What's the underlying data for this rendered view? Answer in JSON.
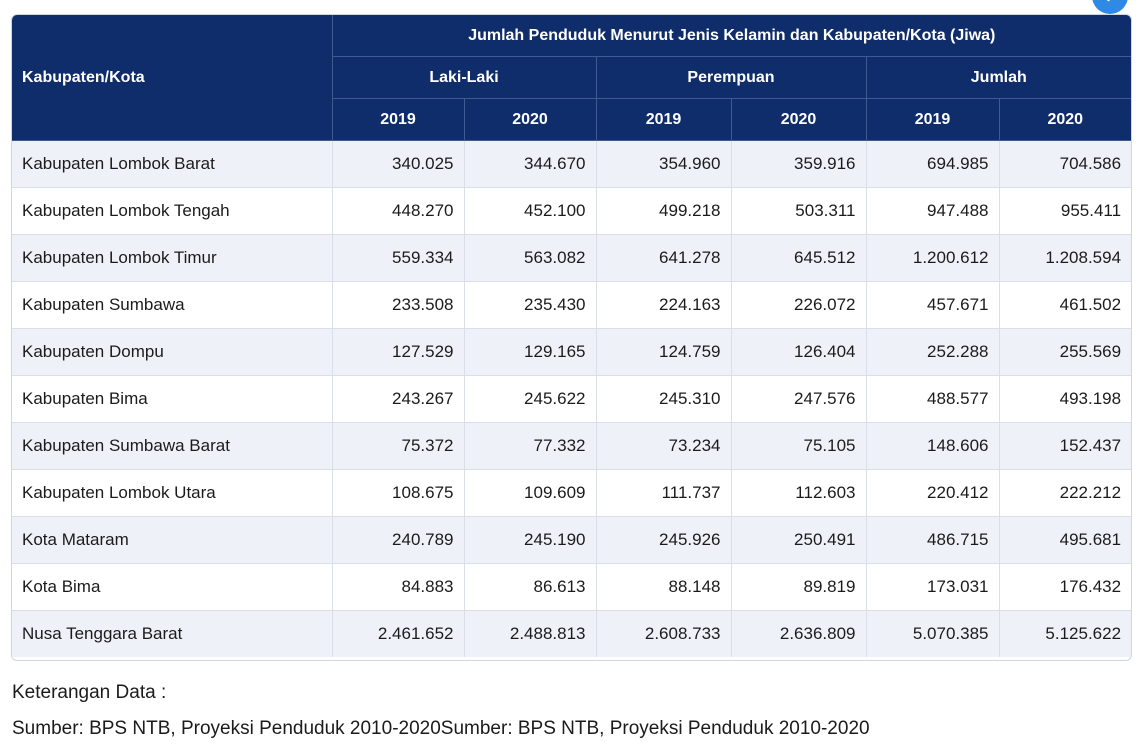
{
  "table": {
    "main_header": "Jumlah Penduduk Menurut Jenis Kelamin dan Kabupaten/Kota (Jiwa)",
    "region_header": "Kabupaten/Kota",
    "groups": [
      "Laki-Laki",
      "Perempuan",
      "Jumlah"
    ],
    "years": [
      "2019",
      "2020",
      "2019",
      "2020",
      "2019",
      "2020"
    ],
    "rows": [
      {
        "name": "Kabupaten Lombok Barat",
        "values": [
          "340.025",
          "344.670",
          "354.960",
          "359.916",
          "694.985",
          "704.586"
        ]
      },
      {
        "name": "Kabupaten Lombok Tengah",
        "values": [
          "448.270",
          "452.100",
          "499.218",
          "503.311",
          "947.488",
          "955.411"
        ]
      },
      {
        "name": "Kabupaten Lombok Timur",
        "values": [
          "559.334",
          "563.082",
          "641.278",
          "645.512",
          "1.200.612",
          "1.208.594"
        ]
      },
      {
        "name": "Kabupaten Sumbawa",
        "values": [
          "233.508",
          "235.430",
          "224.163",
          "226.072",
          "457.671",
          "461.502"
        ]
      },
      {
        "name": "Kabupaten Dompu",
        "values": [
          "127.529",
          "129.165",
          "124.759",
          "126.404",
          "252.288",
          "255.569"
        ]
      },
      {
        "name": "Kabupaten Bima",
        "values": [
          "243.267",
          "245.622",
          "245.310",
          "247.576",
          "488.577",
          "493.198"
        ]
      },
      {
        "name": "Kabupaten Sumbawa Barat",
        "values": [
          "75.372",
          "77.332",
          "73.234",
          "75.105",
          "148.606",
          "152.437"
        ]
      },
      {
        "name": "Kabupaten Lombok Utara",
        "values": [
          "108.675",
          "109.609",
          "111.737",
          "112.603",
          "220.412",
          "222.212"
        ]
      },
      {
        "name": "Kota Mataram",
        "values": [
          "240.789",
          "245.190",
          "245.926",
          "250.491",
          "486.715",
          "495.681"
        ]
      },
      {
        "name": "Kota Bima",
        "values": [
          "84.883",
          "86.613",
          "88.148",
          "89.819",
          "173.031",
          "176.432"
        ]
      },
      {
        "name": "Nusa Tenggara Barat",
        "values": [
          "2.461.652",
          "2.488.813",
          "2.608.733",
          "2.636.809",
          "5.070.385",
          "5.125.622"
        ]
      }
    ]
  },
  "notes": {
    "title": "Keterangan Data :",
    "source": "Sumber: BPS NTB, Proyeksi Penduduk 2010-2020Sumber: BPS NTB, Proyeksi Penduduk 2010-2020"
  },
  "colors": {
    "header_bg": "#0f2d6b",
    "row_alt_bg": "#eef2f8",
    "accent": "#2f8ae6"
  },
  "icons": {
    "fab": "check-icon"
  }
}
